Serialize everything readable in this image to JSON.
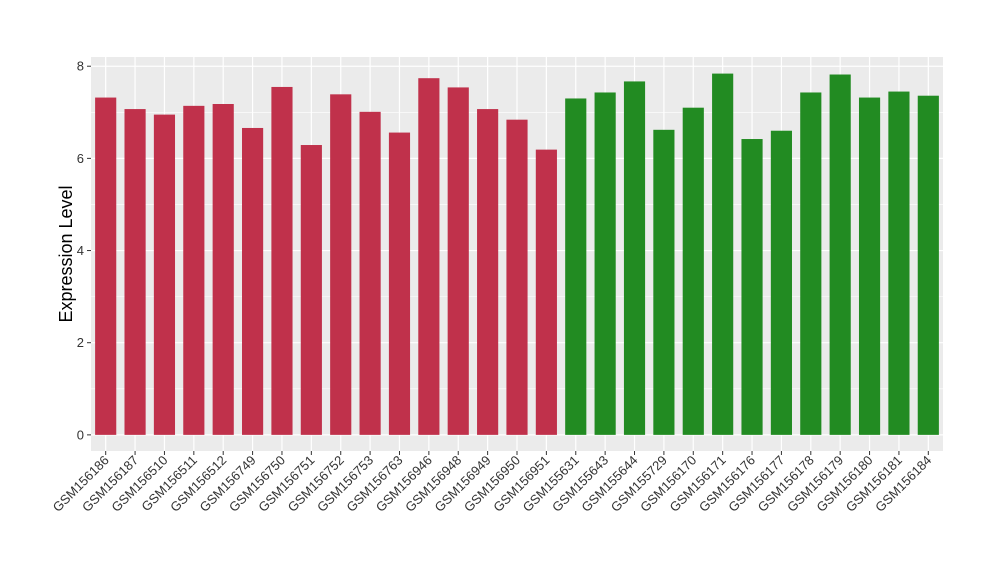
{
  "chart_data": {
    "type": "bar",
    "title": "",
    "xlabel": "",
    "ylabel": "Expression Level",
    "ylim": [
      -0.35,
      8.2
    ],
    "yticks": [
      0,
      2,
      4,
      6,
      8
    ],
    "grid": true,
    "legend": "none",
    "categories": [
      "GSM156186",
      "GSM156187",
      "GSM156510",
      "GSM156511",
      "GSM156512",
      "GSM156749",
      "GSM156750",
      "GSM156751",
      "GSM156752",
      "GSM156753",
      "GSM156763",
      "GSM156946",
      "GSM156948",
      "GSM156949",
      "GSM156950",
      "GSM156951",
      "GSM155631",
      "GSM155643",
      "GSM155644",
      "GSM155729",
      "GSM156170",
      "GSM156171",
      "GSM156176",
      "GSM156177",
      "GSM156178",
      "GSM156179",
      "GSM156180",
      "GSM156181",
      "GSM156184"
    ],
    "values": [
      7.32,
      7.07,
      6.95,
      7.14,
      7.18,
      6.66,
      7.55,
      6.29,
      7.39,
      7.01,
      6.56,
      7.74,
      7.54,
      7.07,
      6.84,
      6.19,
      7.3,
      7.43,
      7.67,
      6.62,
      7.1,
      7.84,
      6.42,
      6.6,
      7.43,
      7.82,
      7.32,
      7.45,
      7.36
    ],
    "groups": [
      0,
      0,
      0,
      0,
      0,
      0,
      0,
      0,
      0,
      0,
      0,
      0,
      0,
      0,
      0,
      0,
      1,
      1,
      1,
      1,
      1,
      1,
      1,
      1,
      1,
      1,
      1,
      1,
      1
    ],
    "colors": {
      "group0": "#C0314B",
      "group1": "#228B22",
      "panel": "#EBEBEB",
      "grid": "#FFFFFF"
    }
  }
}
